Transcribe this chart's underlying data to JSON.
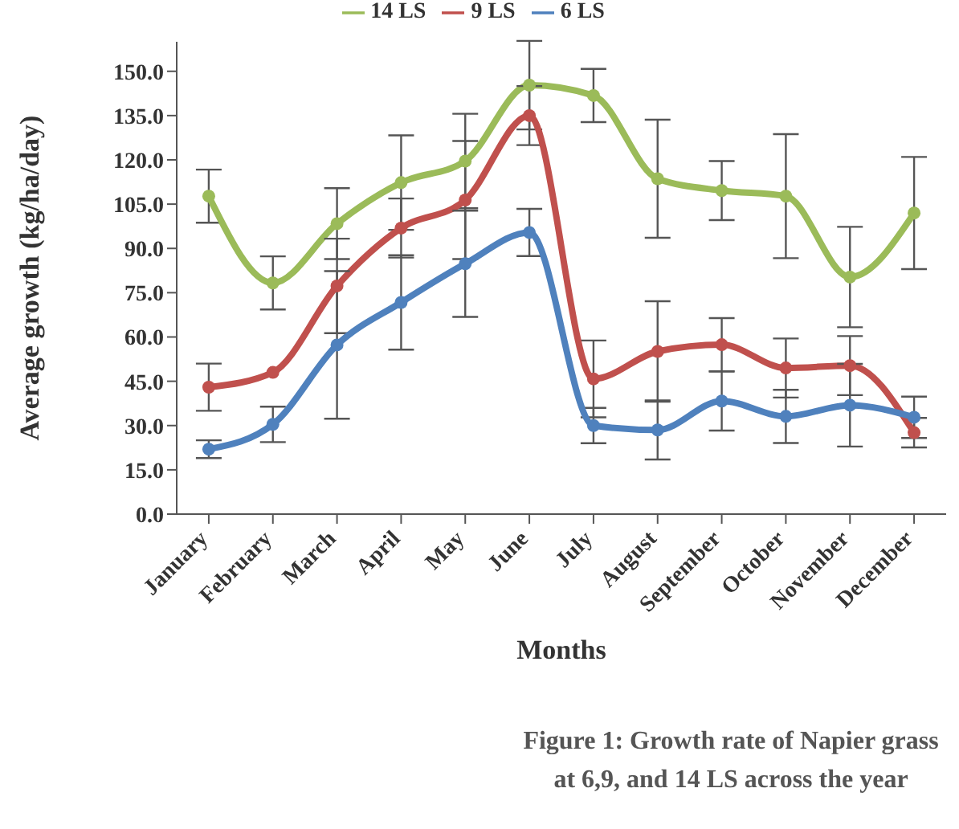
{
  "chart_data": {
    "type": "line",
    "xlabel": "Months",
    "ylabel": "Average growth (kg/ha/day)",
    "categories": [
      "January",
      "February",
      "March",
      "April",
      "May",
      "June",
      "July",
      "August",
      "September",
      "October",
      "November",
      "December"
    ],
    "series": [
      {
        "name": "14 LS",
        "color": "#9bbb59",
        "values": [
          107.7,
          78.3,
          98.4,
          112.3,
          119.6,
          145.3,
          141.8,
          113.6,
          109.6,
          107.7,
          80.3,
          102
        ],
        "errors": [
          9,
          9,
          12,
          16,
          16,
          15,
          9,
          20,
          10,
          21,
          17,
          19
        ]
      },
      {
        "name": "9 LS",
        "color": "#c0504d",
        "values": [
          43,
          48,
          77.3,
          96.9,
          106.4,
          135,
          45.8,
          55.1,
          57.4,
          49.5,
          50.3,
          27.6
        ],
        "errors": [
          8,
          null,
          16,
          10,
          20,
          10,
          13,
          17,
          9,
          10,
          10,
          5
        ]
      },
      {
        "name": "6 LS",
        "color": "#4f81bd",
        "values": [
          22,
          30.4,
          57.3,
          71.7,
          84.8,
          95.4,
          30,
          28.5,
          38.3,
          33.1,
          36.9,
          32.8
        ],
        "errors": [
          3,
          6,
          25,
          16,
          18,
          8,
          6,
          10,
          10,
          9,
          14,
          7
        ]
      }
    ],
    "ylim": [
      0,
      160
    ],
    "yticks": [
      {
        "value": 0,
        "label": "0.0"
      },
      {
        "value": 15,
        "label": "15.0"
      },
      {
        "value": 30,
        "label": "30.0"
      },
      {
        "value": 45,
        "label": "45.0"
      },
      {
        "value": 60,
        "label": "60.0"
      },
      {
        "value": 75,
        "label": "75.0"
      },
      {
        "value": 90,
        "label": "90.0"
      },
      {
        "value": 105,
        "label": "105.0"
      },
      {
        "value": 120,
        "label": "120.0"
      },
      {
        "value": 135,
        "label": "135.0"
      },
      {
        "value": 150,
        "label": "150.0"
      }
    ],
    "grid": false,
    "legend": "top",
    "marker": "circle",
    "line_style": "solid",
    "annotations": [
      "Figure 1: Growth rate of Napier grass at 6,9, and 14 LS across the year"
    ]
  }
}
